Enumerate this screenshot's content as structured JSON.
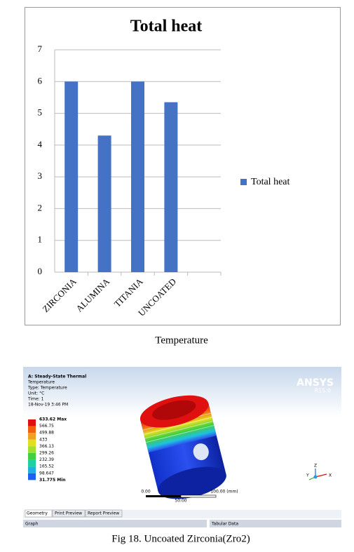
{
  "chart_data": {
    "type": "bar",
    "title": "Total heat",
    "categories": [
      "ZIRCONIA",
      "ALUMINA",
      "TITANIA",
      "UNCOATED",
      null
    ],
    "series": [
      {
        "name": "Total heat",
        "color": "#4472c4",
        "values": [
          6,
          4.3,
          6,
          5.35,
          null
        ]
      }
    ],
    "ylim": [
      0,
      7
    ],
    "yticks": [
      0,
      1,
      2,
      3,
      4,
      5,
      6,
      7
    ],
    "grid": true,
    "legend": "right"
  },
  "caption_1": "Temperature",
  "screenshot": {
    "info": [
      "A: Steady-State Thermal",
      "Temperature",
      "Type: Temperature",
      "Unit: °C",
      "Time: 1",
      "18-Nov-19 3:46 PM"
    ],
    "legend": [
      "633.62 Max",
      "566.75",
      "499.88",
      "433",
      "366.13",
      "299.26",
      "232.39",
      "165.52",
      "98.647",
      "31.775 Min"
    ],
    "brand": "ANSYS",
    "version": "R15.0",
    "scale": [
      "0.00",
      "100.00 (mm)",
      "50.00"
    ],
    "triad": [
      "Z",
      "Y",
      "X"
    ],
    "tabs": [
      "Geometry",
      "Print Preview",
      "Report Preview"
    ],
    "panels": [
      "Graph",
      "Tabular Data"
    ]
  },
  "caption_2": "Fig 18. Uncoated Zirconia(Zro2)"
}
